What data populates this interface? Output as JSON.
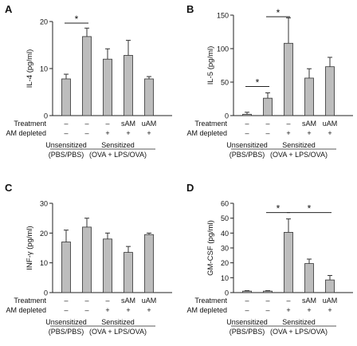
{
  "chart_data": [
    {
      "panel": "A",
      "type": "bar",
      "ylabel": "IL-4 (pg/ml)",
      "ylim": [
        0,
        20
      ],
      "yticks": [
        "0",
        "10",
        "20"
      ],
      "values": [
        7.8,
        16.8,
        12.0,
        12.8,
        7.8
      ],
      "errors": [
        1.0,
        1.8,
        2.2,
        3.2,
        0.5
      ],
      "significance": [
        {
          "from": 0,
          "to": 1,
          "label": "*"
        }
      ]
    },
    {
      "panel": "B",
      "type": "bar",
      "ylabel": "IL-5 (pg/ml)",
      "ylim": [
        0,
        150
      ],
      "yticks": [
        "0",
        "50",
        "100",
        "150"
      ],
      "values": [
        2,
        26,
        108,
        56,
        73
      ],
      "errors": [
        3,
        8,
        38,
        14,
        14
      ],
      "significance": [
        {
          "from": 0,
          "to": 1,
          "label": "*"
        },
        {
          "from": 1,
          "to": 2,
          "label": "*"
        }
      ]
    },
    {
      "panel": "C",
      "type": "bar",
      "ylabel": "INF-γ (pg/ml)",
      "ylim": [
        0,
        30
      ],
      "yticks": [
        "0",
        "10",
        "20",
        "30"
      ],
      "values": [
        17,
        22,
        18,
        13.5,
        19.5
      ],
      "errors": [
        4,
        3,
        2,
        2,
        0.5
      ],
      "significance": []
    },
    {
      "panel": "D",
      "type": "bar",
      "ylabel": "GM-CSF (pg/ml)",
      "ylim": [
        0,
        60
      ],
      "yticks": [
        "0",
        "10",
        "20",
        "30",
        "40",
        "50",
        "60"
      ],
      "values": [
        1,
        1,
        40.5,
        19.5,
        8.5
      ],
      "errors": [
        0.3,
        0.3,
        9,
        3,
        3
      ],
      "significance": [
        {
          "from": 1,
          "to": 2,
          "label": "*"
        },
        {
          "from": 2,
          "to": 4,
          "label": "*"
        }
      ]
    }
  ],
  "row_labels": {
    "treatment": "Treatment",
    "am_depleted": "AM depleted"
  },
  "treatment_values": [
    "–",
    "–",
    "–",
    "sAM",
    "uAM"
  ],
  "am_depleted_values": [
    "–",
    "–",
    "+",
    "+",
    "+"
  ],
  "groups": {
    "unsensitized": {
      "line1": "Unsensitized",
      "line2": "(PBS/PBS)"
    },
    "sensitized": {
      "line1": "Sensitized",
      "line2": "(OVA + LPS/OVA)"
    }
  },
  "colors": {
    "bar": "#bdbdbd",
    "bar_stroke": "#333333",
    "axis": "#222222"
  }
}
